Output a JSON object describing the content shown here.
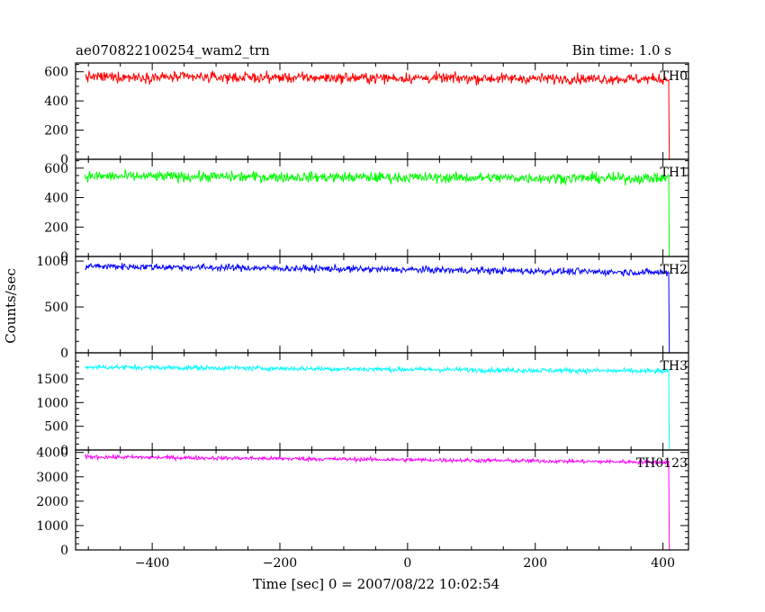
{
  "header": {
    "title": "ae070822100254_wam2_trn",
    "bin_time": "Bin time: 1.0 s"
  },
  "chart_data": {
    "type": "line",
    "title": "ae070822100254_wam2_trn",
    "subtitle": "Bin time: 1.0 s",
    "xlabel": "Time [sec] 0 = 2007/08/22 10:02:54",
    "ylabel": "Counts/sec",
    "xlim": [
      -520,
      440
    ],
    "x_ticks": [
      -400,
      -200,
      0,
      200,
      400
    ],
    "x_tick_labels": [
      "−400",
      "−200",
      "0",
      "200",
      "400"
    ],
    "x_data_range": [
      -505,
      413
    ],
    "dropoff_at": 410,
    "grid": false,
    "panels": [
      {
        "name": "TH0",
        "color": "#ff0000",
        "ylim": [
          0,
          660
        ],
        "y_ticks": [
          0,
          200,
          400,
          600
        ],
        "y_tick_labels": [
          "0",
          "200",
          "400",
          "600"
        ],
        "level_start": 565,
        "level_end": 550,
        "noise": 24
      },
      {
        "name": "TH1",
        "color": "#00ff00",
        "ylim": [
          0,
          660
        ],
        "y_ticks": [
          0,
          200,
          400,
          600
        ],
        "y_tick_labels": [
          "0",
          "200",
          "400",
          "600"
        ],
        "level_start": 545,
        "level_end": 530,
        "noise": 24
      },
      {
        "name": "TH2",
        "color": "#0000ff",
        "ylim": [
          0,
          1050
        ],
        "y_ticks": [
          0,
          500,
          1000
        ],
        "y_tick_labels": [
          "0",
          "500",
          "1000"
        ],
        "level_start": 945,
        "level_end": 875,
        "noise": 25
      },
      {
        "name": "TH3",
        "color": "#00ffff",
        "ylim": [
          0,
          2050
        ],
        "y_ticks": [
          0,
          500,
          1000,
          1500
        ],
        "y_tick_labels": [
          "0",
          "500",
          "1000",
          "1500"
        ],
        "level_start": 1750,
        "level_end": 1660,
        "noise": 35
      },
      {
        "name": "TH0123",
        "color": "#ff00ff",
        "ylim": [
          0,
          4100
        ],
        "y_ticks": [
          0,
          1000,
          2000,
          3000,
          4000
        ],
        "y_tick_labels": [
          "0",
          "1000",
          "2000",
          "3000",
          "4000"
        ],
        "level_start": 3820,
        "level_end": 3600,
        "noise": 55
      }
    ]
  }
}
